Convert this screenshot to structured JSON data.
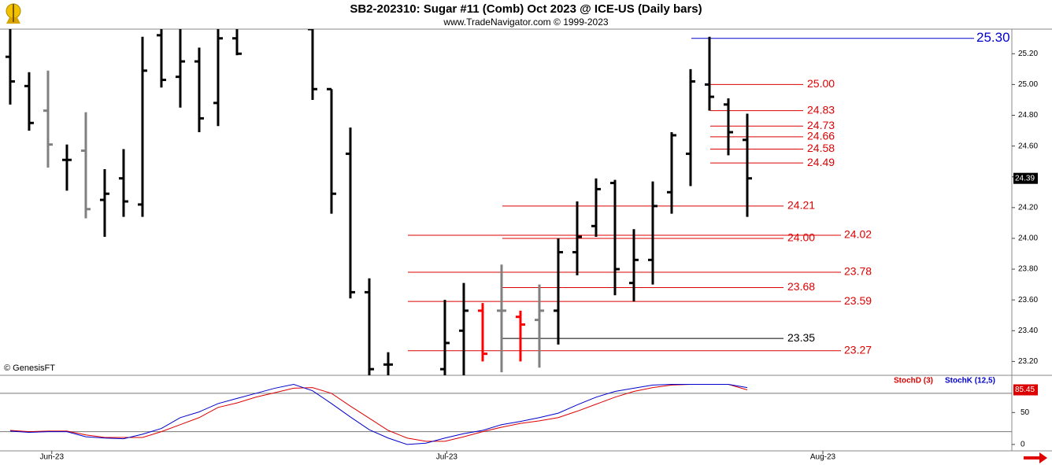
{
  "chart_data": [
    {
      "type": "ohlc",
      "title": "SB2-202310:  Sugar #11 (Comb) Oct 2023 @ ICE-US  (Daily bars)",
      "subtitle": "www.TradeNavigator.com © 1999-2023",
      "credit": "© GenesisFT",
      "bars": [
        {
          "x": 0,
          "open": 25.18,
          "high": 25.36,
          "low": 24.87,
          "close": 25.02,
          "color": "#000000"
        },
        {
          "x": 1,
          "open": 24.99,
          "high": 25.08,
          "low": 24.7,
          "close": 24.75,
          "color": "#000000"
        },
        {
          "x": 2,
          "open": 24.83,
          "high": 25.09,
          "low": 24.46,
          "close": 24.61,
          "color": "#808080"
        },
        {
          "x": 3,
          "open": 24.51,
          "high": 24.61,
          "low": 24.31,
          "close": 24.51,
          "color": "#000000"
        },
        {
          "x": 4,
          "open": 24.57,
          "high": 24.82,
          "low": 24.13,
          "close": 24.19,
          "color": "#808080"
        },
        {
          "x": 5,
          "open": 24.25,
          "high": 24.45,
          "low": 24.01,
          "close": 24.29,
          "color": "#000000"
        },
        {
          "x": 6,
          "open": 24.39,
          "high": 24.58,
          "low": 24.14,
          "close": 24.24,
          "color": "#000000"
        },
        {
          "x": 7,
          "open": 24.22,
          "high": 25.31,
          "low": 24.14,
          "close": 25.09,
          "color": "#000000"
        },
        {
          "x": 8,
          "open": 25.32,
          "high": 25.36,
          "low": 24.98,
          "close": 25.03,
          "color": "#000000"
        },
        {
          "x": 9,
          "open": 25.05,
          "high": 25.36,
          "low": 24.85,
          "close": 25.15,
          "color": "#000000"
        },
        {
          "x": 10,
          "open": 25.15,
          "high": 25.24,
          "low": 24.69,
          "close": 24.78,
          "color": "#000000"
        },
        {
          "x": 11,
          "open": 24.88,
          "high": 25.36,
          "low": 24.73,
          "close": 25.3,
          "color": "#000000"
        },
        {
          "x": 12,
          "open": 25.3,
          "high": 25.36,
          "low": 25.19,
          "close": 25.2,
          "color": "#000000"
        },
        {
          "x": 16,
          "open": 25.36,
          "high": 25.36,
          "low": 24.9,
          "close": 24.97,
          "color": "#000000"
        },
        {
          "x": 17,
          "open": 24.97,
          "high": 24.97,
          "low": 24.16,
          "close": 24.29,
          "color": "#000000"
        },
        {
          "x": 18,
          "open": 24.55,
          "high": 24.72,
          "low": 23.61,
          "close": 23.65,
          "color": "#000000"
        },
        {
          "x": 19,
          "open": 23.65,
          "high": 23.74,
          "low": 23.11,
          "close": 23.15,
          "color": "#000000"
        },
        {
          "x": 20,
          "open": 23.18,
          "high": 23.26,
          "low": 23.11,
          "close": 23.18,
          "color": "#000000"
        },
        {
          "x": 23,
          "open": 23.15,
          "high": 23.6,
          "low": 23.11,
          "close": 23.32,
          "color": "#000000"
        },
        {
          "x": 24,
          "open": 23.4,
          "high": 23.71,
          "low": 23.11,
          "close": 23.53,
          "color": "#000000"
        },
        {
          "x": 25,
          "open": 23.53,
          "high": 23.58,
          "low": 23.2,
          "close": 23.25,
          "color": "#ff0000"
        },
        {
          "x": 26,
          "open": 23.53,
          "high": 23.83,
          "low": 23.13,
          "close": 23.53,
          "color": "#808080"
        },
        {
          "x": 27,
          "open": 23.49,
          "high": 23.53,
          "low": 23.2,
          "close": 23.44,
          "color": "#ff0000"
        },
        {
          "x": 28,
          "open": 23.47,
          "high": 23.7,
          "low": 23.16,
          "close": 23.53,
          "color": "#808080"
        },
        {
          "x": 29,
          "open": 23.53,
          "high": 24.0,
          "low": 23.31,
          "close": 23.91,
          "color": "#000000"
        },
        {
          "x": 30,
          "open": 23.91,
          "high": 24.24,
          "low": 23.76,
          "close": 24.01,
          "color": "#000000"
        },
        {
          "x": 31,
          "open": 24.08,
          "high": 24.39,
          "low": 24.01,
          "close": 24.32,
          "color": "#000000"
        },
        {
          "x": 32,
          "open": 24.36,
          "high": 24.38,
          "low": 23.63,
          "close": 23.8,
          "color": "#000000"
        },
        {
          "x": 33,
          "open": 23.71,
          "high": 24.06,
          "low": 23.59,
          "close": 23.86,
          "color": "#000000"
        },
        {
          "x": 34,
          "open": 23.86,
          "high": 24.37,
          "low": 23.7,
          "close": 24.21,
          "color": "#000000"
        },
        {
          "x": 35,
          "open": 24.3,
          "high": 24.69,
          "low": 24.16,
          "close": 24.67,
          "color": "#000000"
        },
        {
          "x": 36,
          "open": 24.55,
          "high": 25.1,
          "low": 24.34,
          "close": 25.02,
          "color": "#000000"
        },
        {
          "x": 37,
          "open": 25.0,
          "high": 25.31,
          "low": 24.83,
          "close": 24.92,
          "color": "#000000"
        },
        {
          "x": 38,
          "open": 24.87,
          "high": 24.91,
          "low": 24.54,
          "close": 24.69,
          "color": "#000000"
        },
        {
          "x": 39,
          "open": 24.64,
          "high": 24.81,
          "low": 24.14,
          "close": 24.39,
          "color": "#000000"
        }
      ],
      "levels": [
        {
          "value": 25.3,
          "label": "25.30",
          "color": "#0000cc"
        },
        {
          "value": 25.0,
          "label": "25.00",
          "color": "#dd0000"
        },
        {
          "value": 24.83,
          "label": "24.83",
          "color": "#dd0000"
        },
        {
          "value": 24.73,
          "label": "24.73",
          "color": "#dd0000"
        },
        {
          "value": 24.66,
          "label": "24.66",
          "color": "#dd0000"
        },
        {
          "value": 24.58,
          "label": "24.58",
          "color": "#dd0000"
        },
        {
          "value": 24.49,
          "label": "24.49",
          "color": "#dd0000"
        },
        {
          "value": 24.21,
          "label": "24.21",
          "color": "#dd0000"
        },
        {
          "value": 24.02,
          "label": "24.02",
          "color": "#dd0000"
        },
        {
          "value": 24.0,
          "label": "24.00",
          "color": "#dd0000"
        },
        {
          "value": 23.78,
          "label": "23.78",
          "color": "#dd0000"
        },
        {
          "value": 23.68,
          "label": "23.68",
          "color": "#dd0000"
        },
        {
          "value": 23.59,
          "label": "23.59",
          "color": "#dd0000"
        },
        {
          "value": 23.35,
          "label": "23.35",
          "color": "#000000"
        },
        {
          "value": 23.27,
          "label": "23.27",
          "color": "#dd0000"
        }
      ],
      "xlim": [
        -0.54,
        53
      ],
      "xticks": [
        {
          "value": 2.2,
          "label": "Jun-23"
        },
        {
          "value": 23.1,
          "label": "Jul-23"
        },
        {
          "value": 43,
          "label": "Aug-23"
        }
      ],
      "ylim": [
        23.11,
        25.36
      ],
      "yticks": [
        {
          "value": 23.2,
          "label": "23.20"
        },
        {
          "value": 23.4,
          "label": "23.40"
        },
        {
          "value": 23.6,
          "label": "23.60"
        },
        {
          "value": 23.8,
          "label": "23.80"
        },
        {
          "value": 24.0,
          "label": "24.00"
        },
        {
          "value": 24.2,
          "label": "24.20"
        },
        {
          "value": 24.4,
          "label": "24.40"
        },
        {
          "value": 24.6,
          "label": "24.60"
        },
        {
          "value": 24.8,
          "label": "24.80"
        },
        {
          "value": 25.0,
          "label": "25.00"
        },
        {
          "value": 25.2,
          "label": "25.20"
        }
      ]
    },
    {
      "type": "line",
      "x": [
        0,
        1,
        2,
        3,
        4,
        5,
        6,
        7,
        8,
        9,
        10,
        11,
        12,
        13,
        14,
        15,
        16,
        17,
        18,
        19,
        20,
        21,
        22,
        23,
        24,
        25,
        26,
        27,
        28,
        29,
        30,
        31,
        32,
        33,
        34,
        35,
        36,
        37,
        38,
        39
      ],
      "series": [
        {
          "name": "StochD (3)",
          "color": "#dd0000",
          "values": [
            22,
            20,
            21,
            21,
            15,
            11,
            11,
            11,
            20,
            31,
            42,
            58,
            65,
            74,
            81,
            88,
            89,
            80,
            60,
            41,
            22,
            10,
            5,
            5,
            12,
            20,
            27,
            33,
            37,
            42,
            52,
            63,
            74,
            83,
            89,
            93,
            94,
            94,
            94,
            85.45
          ]
        },
        {
          "name": "StochK (12,5)",
          "color": "#0000cc",
          "values": [
            21,
            19,
            20,
            20,
            12,
            10,
            9,
            16,
            25,
            42,
            51,
            64,
            72,
            80,
            88,
            94,
            84,
            64,
            43,
            23,
            10,
            0,
            2,
            10,
            17,
            22,
            31,
            36,
            42,
            49,
            62,
            74,
            83,
            88,
            93,
            94,
            94,
            94,
            94,
            89
          ]
        }
      ],
      "hlines": [
        80,
        20
      ],
      "xlim": [
        -0.54,
        53
      ],
      "ylim": [
        -10,
        107
      ],
      "yticks": [
        50,
        0
      ]
    }
  ]
}
